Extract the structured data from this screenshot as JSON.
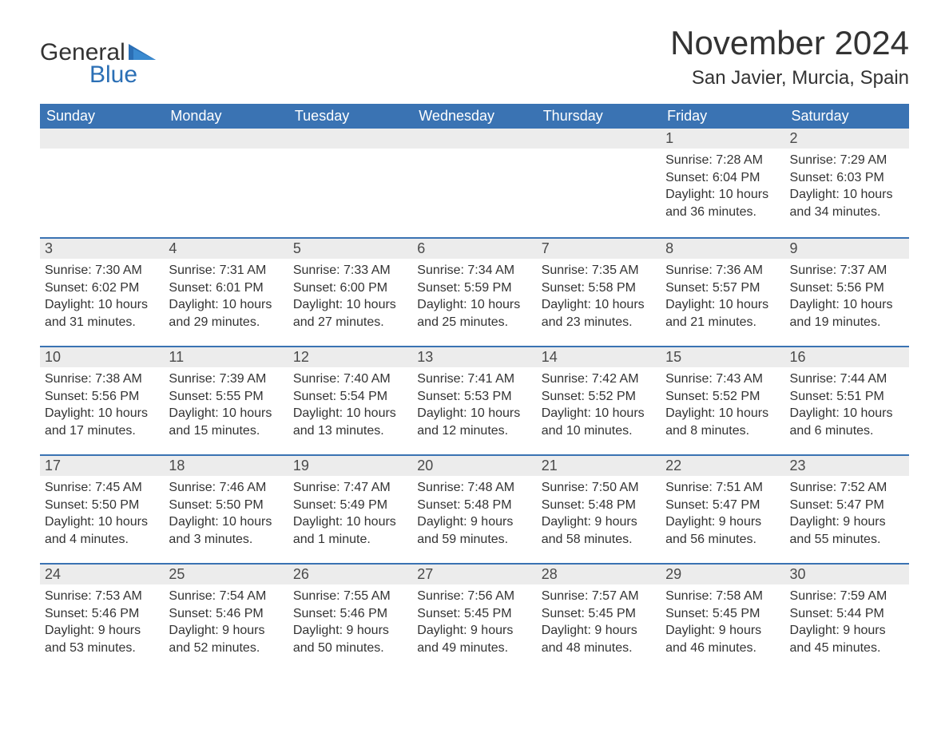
{
  "logo": {
    "word1": "General",
    "word2": "Blue",
    "brand_color": "#2b6fb5",
    "text_color": "#333333",
    "triangle_color": "#2b6fb5"
  },
  "header": {
    "month_title": "November 2024",
    "location": "San Javier, Murcia, Spain"
  },
  "colors": {
    "header_bg": "#3a73b3",
    "header_text": "#ffffff",
    "daynum_bg": "#ececec",
    "rule": "#3a73b3",
    "body_text": "#333333",
    "page_bg": "#ffffff"
  },
  "calendar": {
    "day_headers": [
      "Sunday",
      "Monday",
      "Tuesday",
      "Wednesday",
      "Thursday",
      "Friday",
      "Saturday"
    ],
    "weeks": [
      [
        {
          "empty": true
        },
        {
          "empty": true
        },
        {
          "empty": true
        },
        {
          "empty": true
        },
        {
          "empty": true
        },
        {
          "day": "1",
          "sunrise": "Sunrise: 7:28 AM",
          "sunset": "Sunset: 6:04 PM",
          "daylight": "Daylight: 10 hours and 36 minutes."
        },
        {
          "day": "2",
          "sunrise": "Sunrise: 7:29 AM",
          "sunset": "Sunset: 6:03 PM",
          "daylight": "Daylight: 10 hours and 34 minutes."
        }
      ],
      [
        {
          "day": "3",
          "sunrise": "Sunrise: 7:30 AM",
          "sunset": "Sunset: 6:02 PM",
          "daylight": "Daylight: 10 hours and 31 minutes."
        },
        {
          "day": "4",
          "sunrise": "Sunrise: 7:31 AM",
          "sunset": "Sunset: 6:01 PM",
          "daylight": "Daylight: 10 hours and 29 minutes."
        },
        {
          "day": "5",
          "sunrise": "Sunrise: 7:33 AM",
          "sunset": "Sunset: 6:00 PM",
          "daylight": "Daylight: 10 hours and 27 minutes."
        },
        {
          "day": "6",
          "sunrise": "Sunrise: 7:34 AM",
          "sunset": "Sunset: 5:59 PM",
          "daylight": "Daylight: 10 hours and 25 minutes."
        },
        {
          "day": "7",
          "sunrise": "Sunrise: 7:35 AM",
          "sunset": "Sunset: 5:58 PM",
          "daylight": "Daylight: 10 hours and 23 minutes."
        },
        {
          "day": "8",
          "sunrise": "Sunrise: 7:36 AM",
          "sunset": "Sunset: 5:57 PM",
          "daylight": "Daylight: 10 hours and 21 minutes."
        },
        {
          "day": "9",
          "sunrise": "Sunrise: 7:37 AM",
          "sunset": "Sunset: 5:56 PM",
          "daylight": "Daylight: 10 hours and 19 minutes."
        }
      ],
      [
        {
          "day": "10",
          "sunrise": "Sunrise: 7:38 AM",
          "sunset": "Sunset: 5:56 PM",
          "daylight": "Daylight: 10 hours and 17 minutes."
        },
        {
          "day": "11",
          "sunrise": "Sunrise: 7:39 AM",
          "sunset": "Sunset: 5:55 PM",
          "daylight": "Daylight: 10 hours and 15 minutes."
        },
        {
          "day": "12",
          "sunrise": "Sunrise: 7:40 AM",
          "sunset": "Sunset: 5:54 PM",
          "daylight": "Daylight: 10 hours and 13 minutes."
        },
        {
          "day": "13",
          "sunrise": "Sunrise: 7:41 AM",
          "sunset": "Sunset: 5:53 PM",
          "daylight": "Daylight: 10 hours and 12 minutes."
        },
        {
          "day": "14",
          "sunrise": "Sunrise: 7:42 AM",
          "sunset": "Sunset: 5:52 PM",
          "daylight": "Daylight: 10 hours and 10 minutes."
        },
        {
          "day": "15",
          "sunrise": "Sunrise: 7:43 AM",
          "sunset": "Sunset: 5:52 PM",
          "daylight": "Daylight: 10 hours and 8 minutes."
        },
        {
          "day": "16",
          "sunrise": "Sunrise: 7:44 AM",
          "sunset": "Sunset: 5:51 PM",
          "daylight": "Daylight: 10 hours and 6 minutes."
        }
      ],
      [
        {
          "day": "17",
          "sunrise": "Sunrise: 7:45 AM",
          "sunset": "Sunset: 5:50 PM",
          "daylight": "Daylight: 10 hours and 4 minutes."
        },
        {
          "day": "18",
          "sunrise": "Sunrise: 7:46 AM",
          "sunset": "Sunset: 5:50 PM",
          "daylight": "Daylight: 10 hours and 3 minutes."
        },
        {
          "day": "19",
          "sunrise": "Sunrise: 7:47 AM",
          "sunset": "Sunset: 5:49 PM",
          "daylight": "Daylight: 10 hours and 1 minute."
        },
        {
          "day": "20",
          "sunrise": "Sunrise: 7:48 AM",
          "sunset": "Sunset: 5:48 PM",
          "daylight": "Daylight: 9 hours and 59 minutes."
        },
        {
          "day": "21",
          "sunrise": "Sunrise: 7:50 AM",
          "sunset": "Sunset: 5:48 PM",
          "daylight": "Daylight: 9 hours and 58 minutes."
        },
        {
          "day": "22",
          "sunrise": "Sunrise: 7:51 AM",
          "sunset": "Sunset: 5:47 PM",
          "daylight": "Daylight: 9 hours and 56 minutes."
        },
        {
          "day": "23",
          "sunrise": "Sunrise: 7:52 AM",
          "sunset": "Sunset: 5:47 PM",
          "daylight": "Daylight: 9 hours and 55 minutes."
        }
      ],
      [
        {
          "day": "24",
          "sunrise": "Sunrise: 7:53 AM",
          "sunset": "Sunset: 5:46 PM",
          "daylight": "Daylight: 9 hours and 53 minutes."
        },
        {
          "day": "25",
          "sunrise": "Sunrise: 7:54 AM",
          "sunset": "Sunset: 5:46 PM",
          "daylight": "Daylight: 9 hours and 52 minutes."
        },
        {
          "day": "26",
          "sunrise": "Sunrise: 7:55 AM",
          "sunset": "Sunset: 5:46 PM",
          "daylight": "Daylight: 9 hours and 50 minutes."
        },
        {
          "day": "27",
          "sunrise": "Sunrise: 7:56 AM",
          "sunset": "Sunset: 5:45 PM",
          "daylight": "Daylight: 9 hours and 49 minutes."
        },
        {
          "day": "28",
          "sunrise": "Sunrise: 7:57 AM",
          "sunset": "Sunset: 5:45 PM",
          "daylight": "Daylight: 9 hours and 48 minutes."
        },
        {
          "day": "29",
          "sunrise": "Sunrise: 7:58 AM",
          "sunset": "Sunset: 5:45 PM",
          "daylight": "Daylight: 9 hours and 46 minutes."
        },
        {
          "day": "30",
          "sunrise": "Sunrise: 7:59 AM",
          "sunset": "Sunset: 5:44 PM",
          "daylight": "Daylight: 9 hours and 45 minutes."
        }
      ]
    ]
  }
}
